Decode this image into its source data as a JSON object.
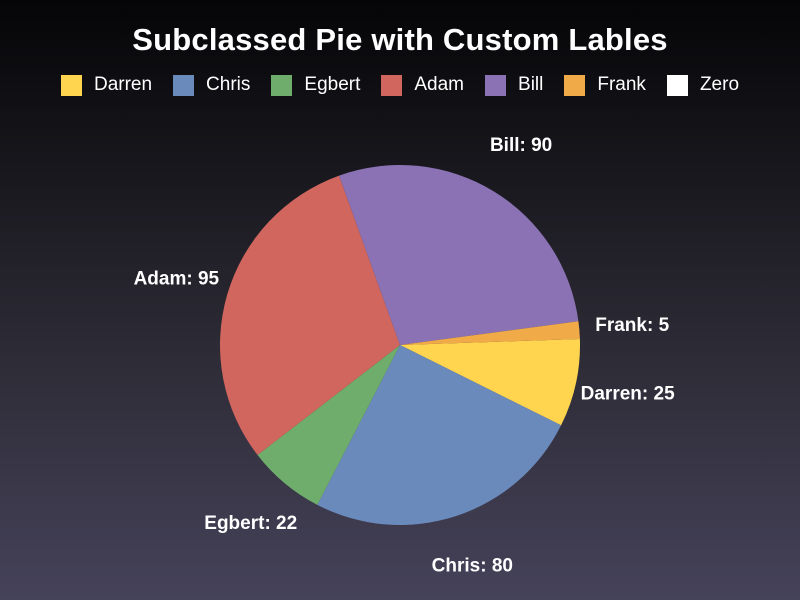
{
  "chart_data": {
    "type": "pie",
    "title": "Subclassed Pie with Custom Lables",
    "legend_position": "top",
    "slices": [
      {
        "name": "Darren",
        "value": 25,
        "color": "#ffd54f"
      },
      {
        "name": "Chris",
        "value": 80,
        "color": "#6b8abc"
      },
      {
        "name": "Egbert",
        "value": 22,
        "color": "#6fad6c"
      },
      {
        "name": "Adam",
        "value": 95,
        "color": "#d0665e"
      },
      {
        "name": "Bill",
        "value": 90,
        "color": "#8b72b4"
      },
      {
        "name": "Frank",
        "value": 5,
        "color": "#f0aa48"
      },
      {
        "name": "Zero",
        "value": 0,
        "color": "#ffffff"
      }
    ],
    "labels": [
      "Darren: 25",
      "Chris: 80",
      "Egbert: 22",
      "Adam: 95",
      "Bill: 90",
      "Frank: 5"
    ]
  }
}
